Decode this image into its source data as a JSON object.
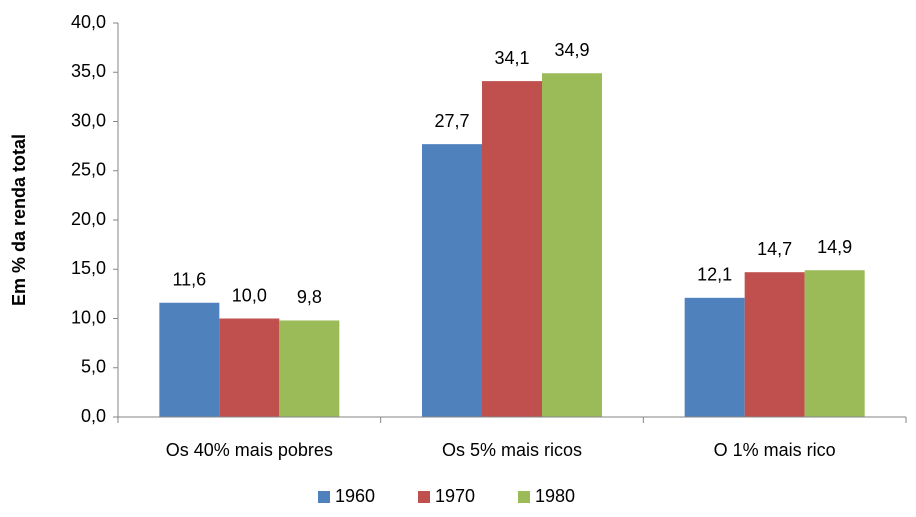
{
  "chart_data": {
    "type": "bar",
    "ylabel": "Em % da renda total",
    "categories": [
      "Os 40% mais pobres",
      "Os 5% mais ricos",
      "O 1% mais rico"
    ],
    "series": [
      {
        "name": "1960",
        "color": "#4f81bd",
        "values": [
          11.6,
          27.7,
          12.1
        ],
        "value_labels": [
          "11,6",
          "27,7",
          "12,1"
        ]
      },
      {
        "name": "1970",
        "color": "#c0504d",
        "values": [
          10.0,
          34.1,
          14.7
        ],
        "value_labels": [
          "10,0",
          "34,1",
          "14,7"
        ]
      },
      {
        "name": "1980",
        "color": "#9bbb59",
        "values": [
          9.8,
          34.9,
          14.9
        ],
        "value_labels": [
          "9,8",
          "34,9",
          "14,9"
        ]
      }
    ],
    "ylim": [
      0,
      40
    ],
    "yticks": [
      {
        "value": 0,
        "label": "0,0"
      },
      {
        "value": 5,
        "label": "5,0"
      },
      {
        "value": 10,
        "label": "10,0"
      },
      {
        "value": 15,
        "label": "15,0"
      },
      {
        "value": 20,
        "label": "20,0"
      },
      {
        "value": 25,
        "label": "25,0"
      },
      {
        "value": 30,
        "label": "30,0"
      },
      {
        "value": 35,
        "label": "35,0"
      },
      {
        "value": 40,
        "label": "40,0"
      }
    ],
    "legend": "bottom"
  }
}
